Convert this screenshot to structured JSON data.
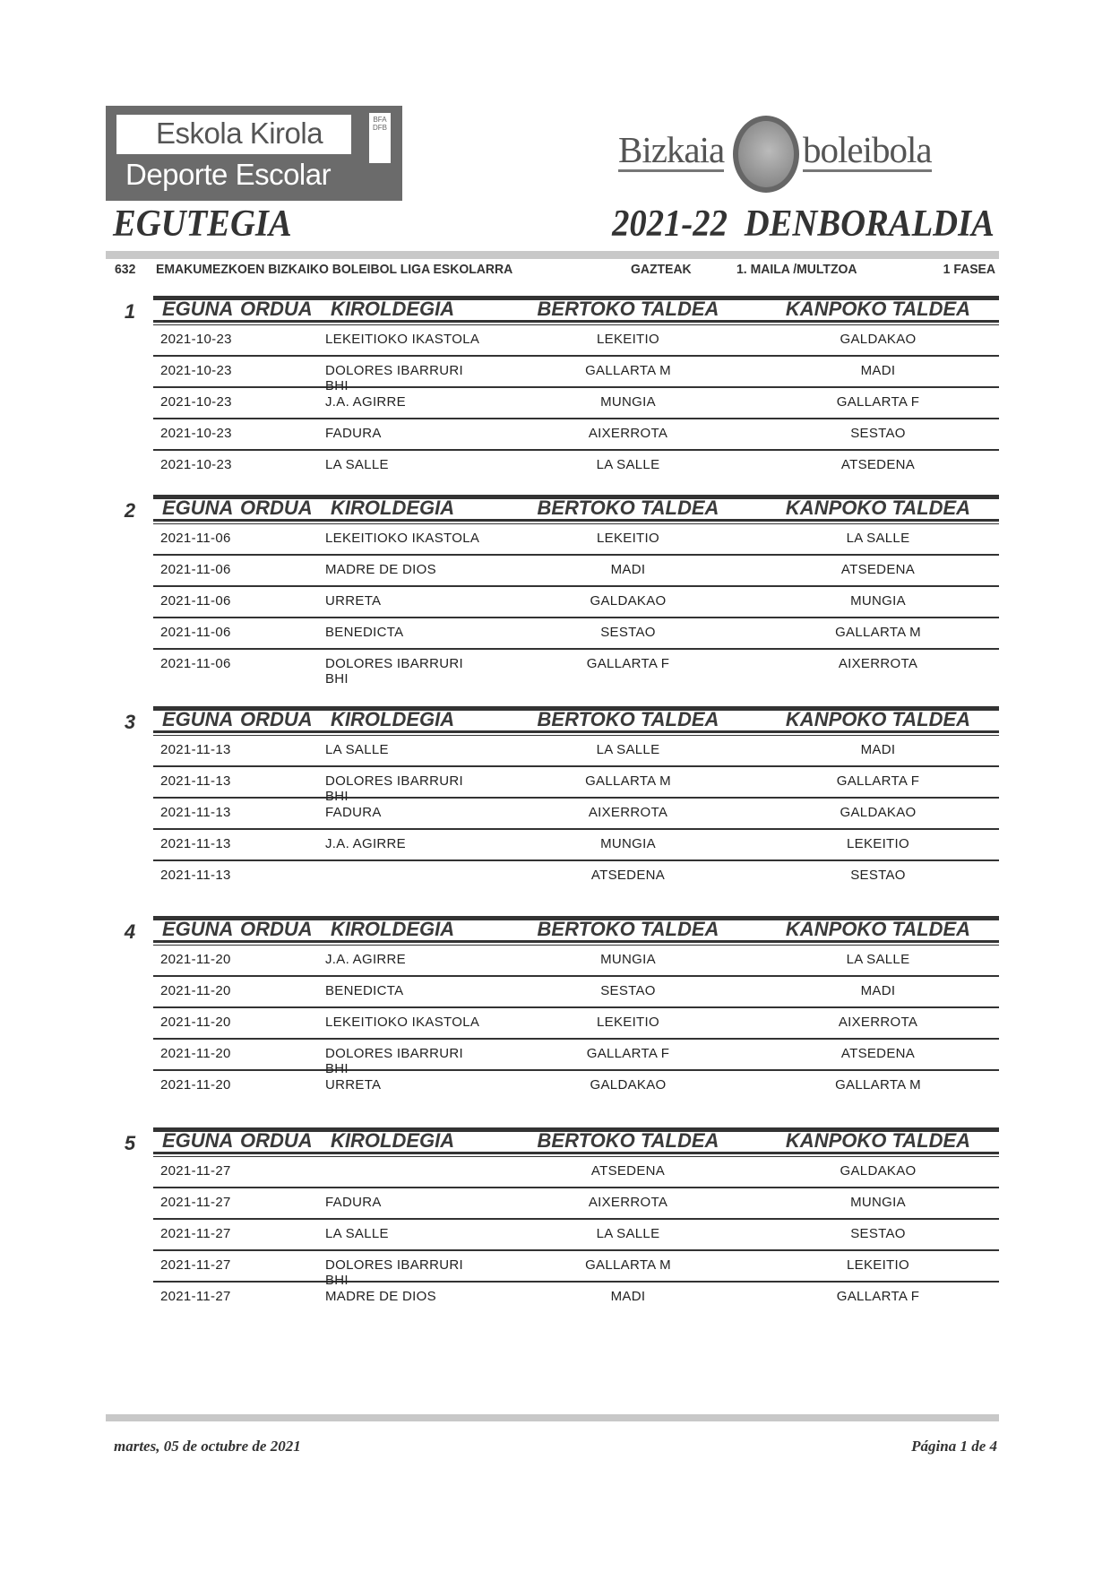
{
  "logos": {
    "eskola_line1": "Eskola Kirola",
    "eskola_line2": "Deporte Escolar",
    "eskola_badge": "BFA DFB",
    "bizkaia_left": "Bizkaia",
    "bizkaia_right": "boleibola"
  },
  "header": {
    "title_left": "EGUTEGIA",
    "title_right": "2021-22  DENBORALDIA"
  },
  "info": {
    "code": "632",
    "league": "EMAKUMEZKOEN BIZKAIKO BOLEIBOL LIGA ESKOLARRA",
    "category": "GAZTEAK",
    "level": "1. MAILA /MULTZOA",
    "phase": "1 FASEA"
  },
  "columns": {
    "date": "EGUNA",
    "time": "ORDUA",
    "venue": "KIROLDEGIA",
    "home": "BERTOKO TALDEA",
    "away": "KANPOKO TALDEA"
  },
  "rounds": [
    {
      "number": "1",
      "matches": [
        {
          "date": "2021-10-23",
          "venue": "LEKEITIOKO IKASTOLA",
          "home": "LEKEITIO",
          "away": "GALDAKAO"
        },
        {
          "date": "2021-10-23",
          "venue": "DOLORES IBARRURI BHI",
          "home": "GALLARTA M",
          "away": "MADI"
        },
        {
          "date": "2021-10-23",
          "venue": "J.A. AGIRRE",
          "home": "MUNGIA",
          "away": "GALLARTA F"
        },
        {
          "date": "2021-10-23",
          "venue": "FADURA",
          "home": "AIXERROTA",
          "away": "SESTAO"
        },
        {
          "date": "2021-10-23",
          "venue": "LA SALLE",
          "home": "LA SALLE",
          "away": "ATSEDENA"
        }
      ]
    },
    {
      "number": "2",
      "matches": [
        {
          "date": "2021-11-06",
          "venue": "LEKEITIOKO IKASTOLA",
          "home": "LEKEITIO",
          "away": "LA SALLE"
        },
        {
          "date": "2021-11-06",
          "venue": "MADRE DE DIOS",
          "home": "MADI",
          "away": "ATSEDENA"
        },
        {
          "date": "2021-11-06",
          "venue": "URRETA",
          "home": "GALDAKAO",
          "away": "MUNGIA"
        },
        {
          "date": "2021-11-06",
          "venue": "BENEDICTA",
          "home": "SESTAO",
          "away": "GALLARTA M"
        },
        {
          "date": "2021-11-06",
          "venue": "DOLORES IBARRURI BHI",
          "home": "GALLARTA F",
          "away": "AIXERROTA"
        }
      ]
    },
    {
      "number": "3",
      "matches": [
        {
          "date": "2021-11-13",
          "venue": "LA SALLE",
          "home": "LA SALLE",
          "away": "MADI"
        },
        {
          "date": "2021-11-13",
          "venue": "DOLORES IBARRURI BHI",
          "home": "GALLARTA M",
          "away": "GALLARTA F"
        },
        {
          "date": "2021-11-13",
          "venue": "FADURA",
          "home": "AIXERROTA",
          "away": "GALDAKAO"
        },
        {
          "date": "2021-11-13",
          "venue": "J.A. AGIRRE",
          "home": "MUNGIA",
          "away": "LEKEITIO"
        },
        {
          "date": "2021-11-13",
          "venue": "",
          "home": "ATSEDENA",
          "away": "SESTAO"
        }
      ]
    },
    {
      "number": "4",
      "matches": [
        {
          "date": "2021-11-20",
          "venue": "J.A. AGIRRE",
          "home": "MUNGIA",
          "away": "LA SALLE"
        },
        {
          "date": "2021-11-20",
          "venue": "BENEDICTA",
          "home": "SESTAO",
          "away": "MADI"
        },
        {
          "date": "2021-11-20",
          "venue": "LEKEITIOKO IKASTOLA",
          "home": "LEKEITIO",
          "away": "AIXERROTA"
        },
        {
          "date": "2021-11-20",
          "venue": "DOLORES IBARRURI BHI",
          "home": "GALLARTA F",
          "away": "ATSEDENA"
        },
        {
          "date": "2021-11-20",
          "venue": "URRETA",
          "home": "GALDAKAO",
          "away": "GALLARTA M"
        }
      ]
    },
    {
      "number": "5",
      "matches": [
        {
          "date": "2021-11-27",
          "venue": "",
          "home": "ATSEDENA",
          "away": "GALDAKAO"
        },
        {
          "date": "2021-11-27",
          "venue": "FADURA",
          "home": "AIXERROTA",
          "away": "MUNGIA"
        },
        {
          "date": "2021-11-27",
          "venue": "LA SALLE",
          "home": "LA SALLE",
          "away": "SESTAO"
        },
        {
          "date": "2021-11-27",
          "venue": "DOLORES IBARRURI BHI",
          "home": "GALLARTA M",
          "away": "LEKEITIO"
        },
        {
          "date": "2021-11-27",
          "venue": "MADRE DE DIOS",
          "home": "MADI",
          "away": "GALLARTA F"
        }
      ]
    }
  ],
  "footer": {
    "date": "martes, 05 de octubre de 2021",
    "page": "Página 1 de 4"
  }
}
